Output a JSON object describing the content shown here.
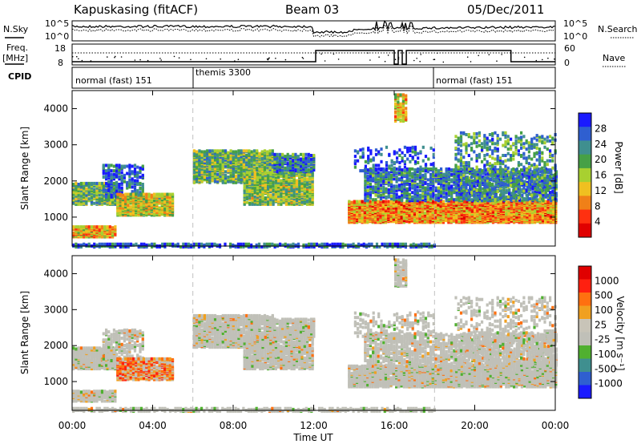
{
  "header": {
    "station": "Kapuskasing (fitACF)",
    "beam": "Beam 03",
    "date": "05/Dec/2011"
  },
  "strips": {
    "nsky_label": "N.Sky",
    "nsky_ticks": [
      "10^5",
      "10^0"
    ],
    "nsearch_label": "N.Search",
    "nsearch_ticks": [
      "10^5",
      "10^0"
    ],
    "freq_label": "Freq.",
    "freq_unit": "[MHz]",
    "freq_ticks": [
      "18",
      "8"
    ],
    "nave_label": "Nave",
    "nave_ticks": [
      "60",
      "0"
    ],
    "cpid_label": "CPID",
    "cpid_segments": [
      {
        "label": "normal (fast) 151",
        "start_hour": 0,
        "end_hour": 6
      },
      {
        "label": "themis 3300",
        "start_hour": 6,
        "end_hour": 18
      },
      {
        "label": "normal (fast) 151",
        "start_hour": 18,
        "end_hour": 24
      }
    ]
  },
  "colors": {
    "power": [
      "#1a1aff",
      "#2f5fd0",
      "#3f8f8f",
      "#46a046",
      "#a8d030",
      "#f0c020",
      "#f08018",
      "#ff3010",
      "#e00000"
    ],
    "velocity": [
      "#1a1aff",
      "#2f5fd0",
      "#3f8f8f",
      "#50b030",
      "#c0c0b8",
      "#c8c4b8",
      "#f0a020",
      "#ff7010",
      "#ff2010",
      "#e00000"
    ]
  },
  "chart_data": [
    {
      "type": "heatmap",
      "name": "power",
      "ylabel": "Slant Range [km]",
      "yticks": [
        1000,
        2000,
        3000,
        4000
      ],
      "ylim": [
        200,
        4500
      ],
      "xlim": [
        0,
        24
      ],
      "colorbar_label": "Power [dB]",
      "colorbar_ticks": [
        "28",
        "24",
        "20",
        "16",
        "12",
        "8",
        "4"
      ]
    },
    {
      "type": "heatmap",
      "name": "velocity",
      "ylabel": "Slant Range [km]",
      "yticks": [
        1000,
        2000,
        3000,
        4000
      ],
      "ylim": [
        200,
        4500
      ],
      "xlim": [
        0,
        24
      ],
      "xlabel": "Time UT",
      "xticks": [
        "00:00",
        "04:00",
        "08:00",
        "12:00",
        "16:00",
        "20:00",
        "00:00"
      ],
      "colorbar_label": "Velocity [m s⁻¹]",
      "colorbar_ticks": [
        "1000",
        "500",
        "100",
        "25",
        "-25",
        "-100",
        "-500",
        "-1000"
      ]
    }
  ]
}
